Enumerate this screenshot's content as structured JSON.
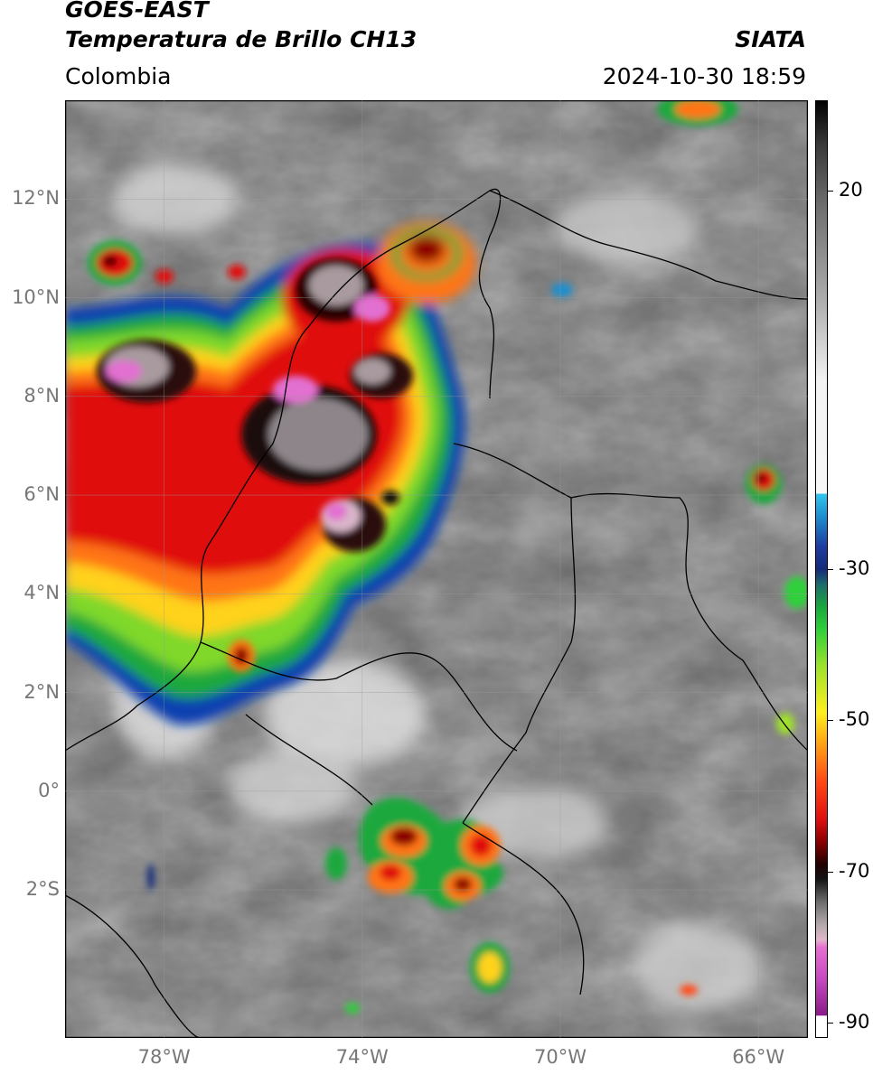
{
  "header": {
    "title_line1": "GOES-EAST",
    "title_line2": "Temperatura de Brillo CH13",
    "brand": "SIATA",
    "region": "Colombia",
    "timestamp": "2024-10-30 18:59"
  },
  "axes": {
    "lat_labels": [
      {
        "text": "12°N",
        "value": 12
      },
      {
        "text": "10°N",
        "value": 10
      },
      {
        "text": "8°N",
        "value": 8
      },
      {
        "text": "6°N",
        "value": 6
      },
      {
        "text": "4°N",
        "value": 4
      },
      {
        "text": "2°N",
        "value": 2
      },
      {
        "text": "0°",
        "value": 0
      },
      {
        "text": "2°S",
        "value": -2
      }
    ],
    "lon_labels": [
      {
        "text": "78°W",
        "value": -78
      },
      {
        "text": "74°W",
        "value": -74
      },
      {
        "text": "70°W",
        "value": -70
      },
      {
        "text": "66°W",
        "value": -66
      }
    ],
    "lat_range": [
      -5,
      14
    ],
    "lon_range": [
      -80,
      -65
    ]
  },
  "colorbar": {
    "range": [
      -92,
      32
    ],
    "ticks": [
      {
        "text": "20",
        "value": 20
      },
      {
        "text": "-30",
        "value": -30
      },
      {
        "text": "-50",
        "value": -50
      },
      {
        "text": "-70",
        "value": -70
      },
      {
        "text": "-90",
        "value": -90
      }
    ],
    "stops": [
      {
        "v": 32,
        "c": "#000000"
      },
      {
        "v": 26,
        "c": "#3a3a3a"
      },
      {
        "v": 18,
        "c": "#6e6e6e"
      },
      {
        "v": 5,
        "c": "#b0b0b0"
      },
      {
        "v": -5,
        "c": "#f2f2f2"
      },
      {
        "v": -20,
        "c": "#f7f7f7"
      },
      {
        "v": -20.01,
        "c": "#33c7ee"
      },
      {
        "v": -23,
        "c": "#1d8fcf"
      },
      {
        "v": -27,
        "c": "#1e3da0"
      },
      {
        "v": -30,
        "c": "#152a7a"
      },
      {
        "v": -32,
        "c": "#1d6b6e"
      },
      {
        "v": -35,
        "c": "#1aa83e"
      },
      {
        "v": -38,
        "c": "#2fd03a"
      },
      {
        "v": -43,
        "c": "#a0e22a"
      },
      {
        "v": -49,
        "c": "#ffef1e"
      },
      {
        "v": -53,
        "c": "#ffa314"
      },
      {
        "v": -58,
        "c": "#ff4a14"
      },
      {
        "v": -63,
        "c": "#e01010"
      },
      {
        "v": -66,
        "c": "#8c0000"
      },
      {
        "v": -69,
        "c": "#220000"
      },
      {
        "v": -71,
        "c": "#141414"
      },
      {
        "v": -74,
        "c": "#6d6d6d"
      },
      {
        "v": -77,
        "c": "#b3a8aa"
      },
      {
        "v": -79,
        "c": "#e2b6c9"
      },
      {
        "v": -80,
        "c": "#e66fd0"
      },
      {
        "v": -84,
        "c": "#c84bc2"
      },
      {
        "v": -89,
        "c": "#8b1a8a"
      },
      {
        "v": -89.1,
        "c": "#ffffff"
      },
      {
        "v": -92,
        "c": "#ffffff"
      }
    ]
  }
}
